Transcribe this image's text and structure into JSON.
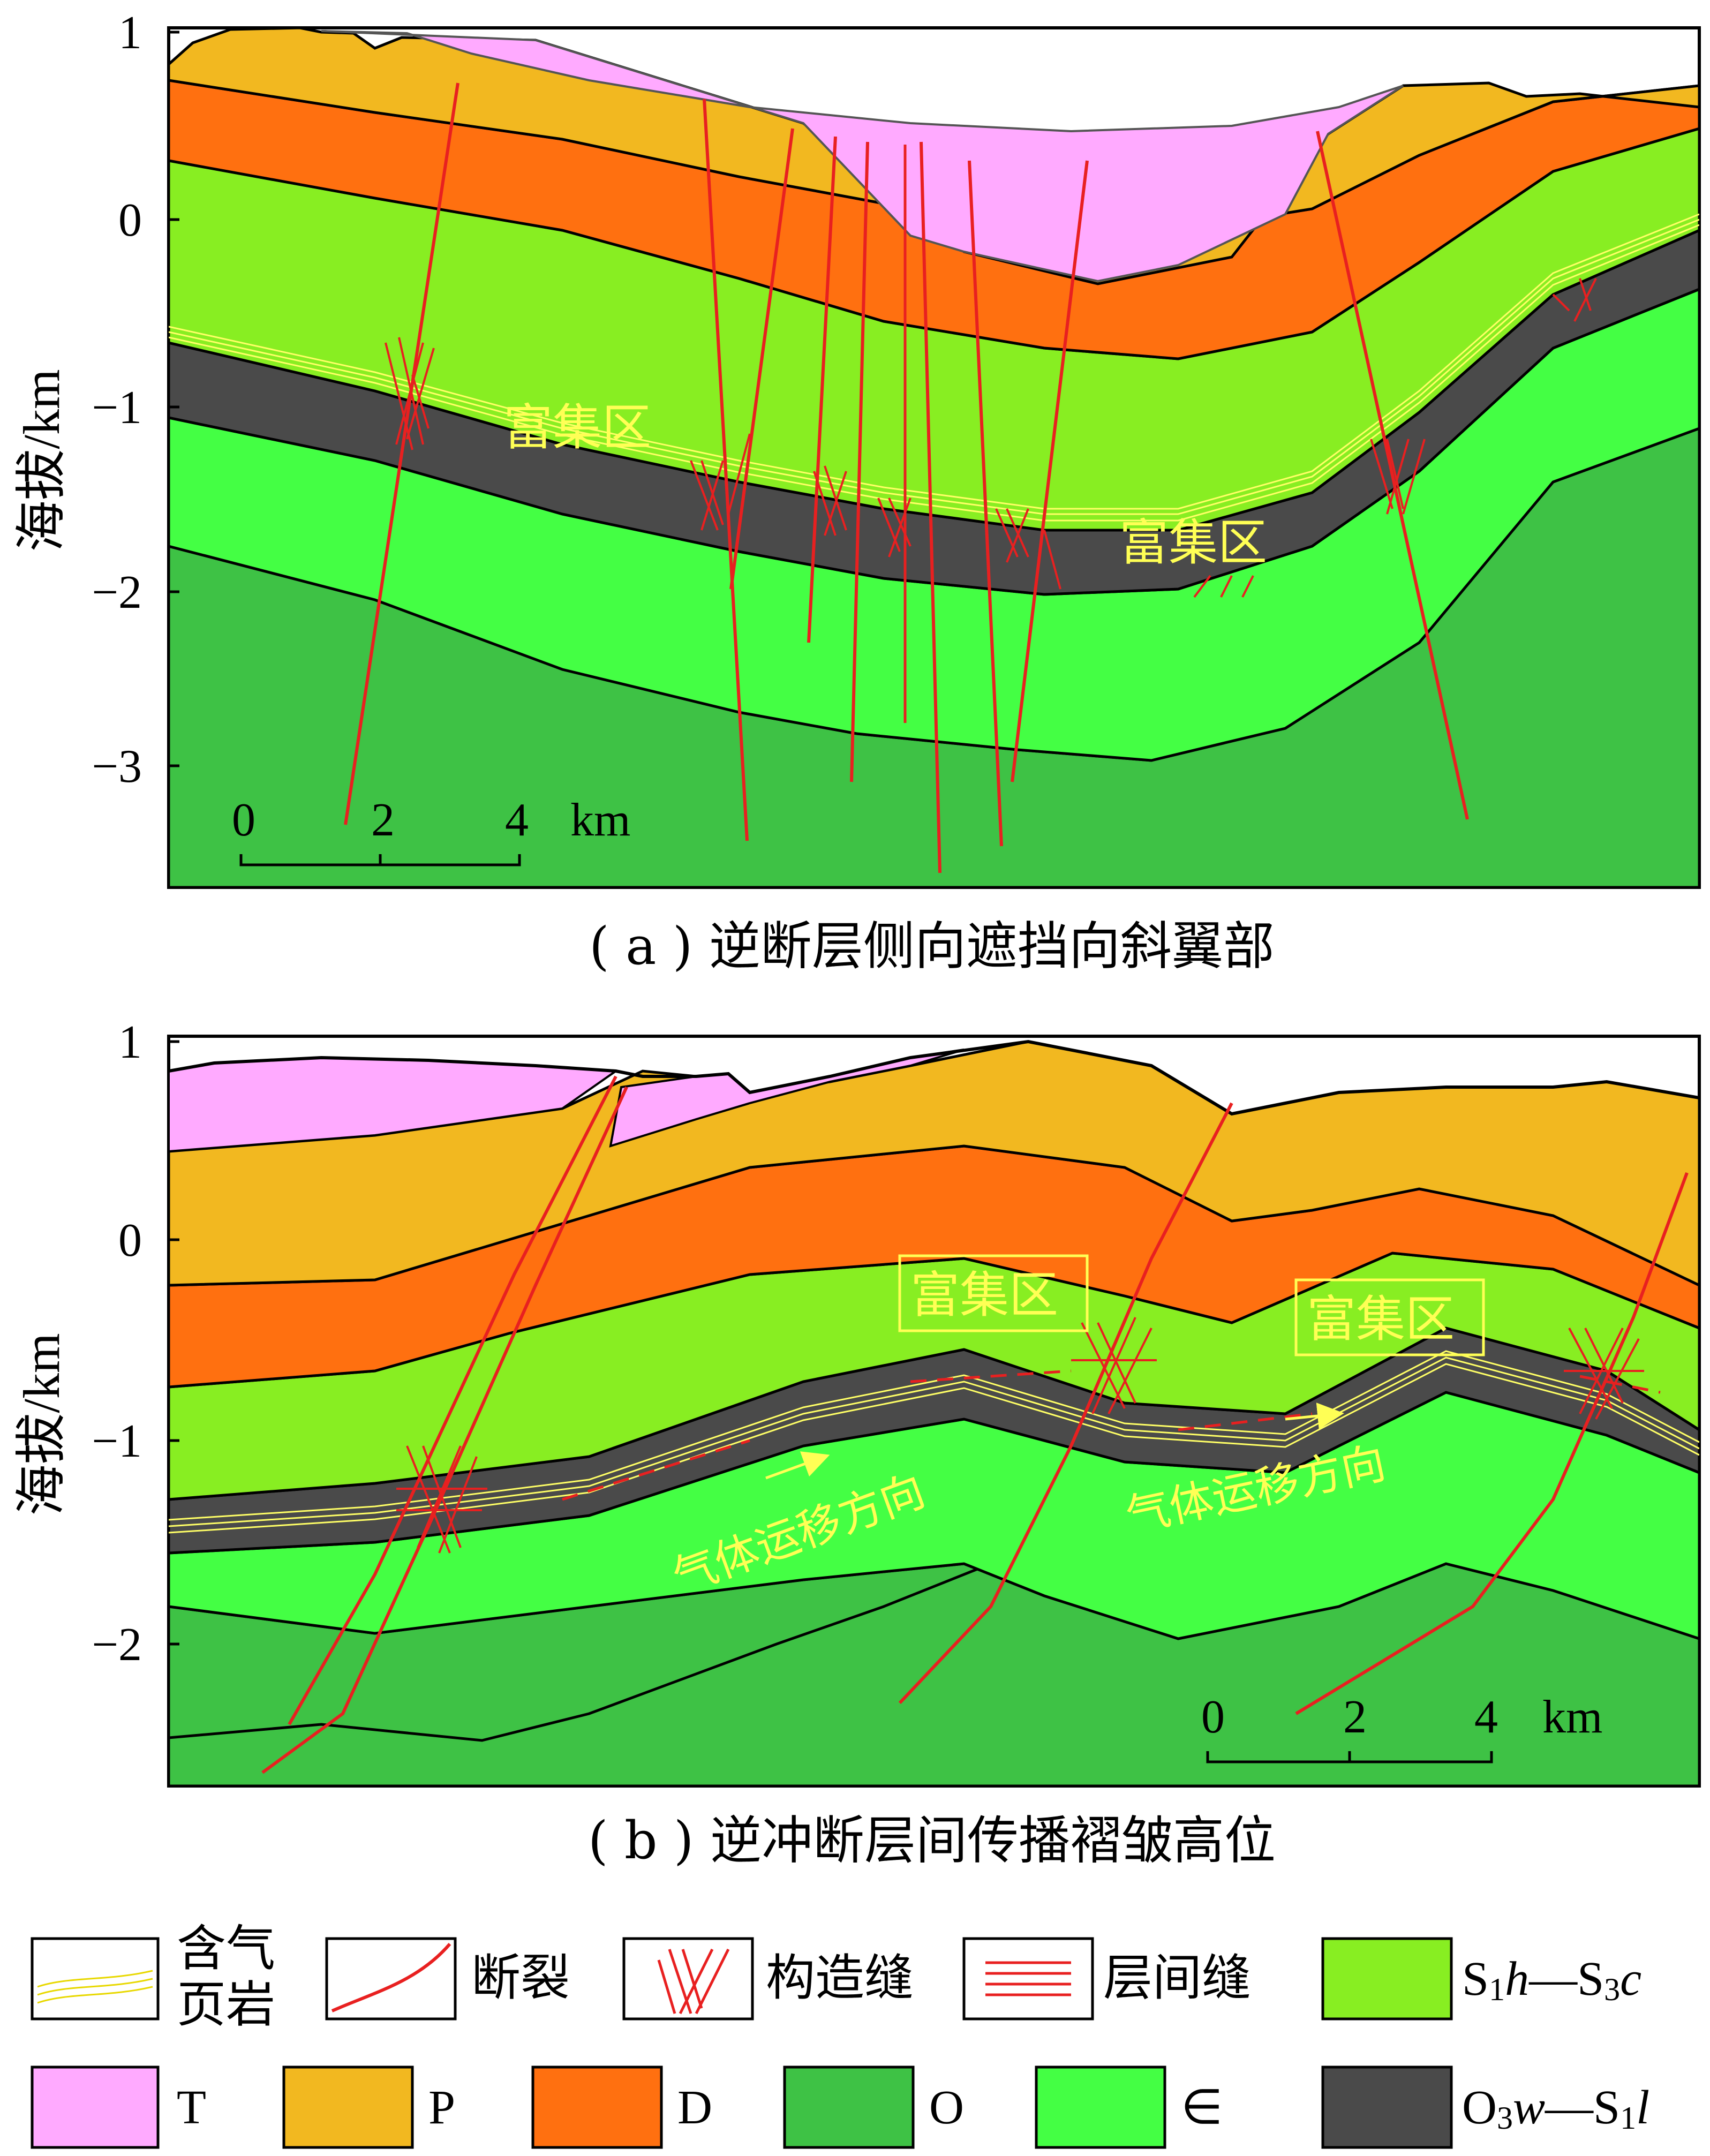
{
  "panel_a": {
    "ylabel": "海拔/km",
    "yticks": [
      "1",
      "0",
      "−1",
      "−2",
      "−3"
    ],
    "scalebar": {
      "ticks": [
        "0",
        "2",
        "4"
      ],
      "unit": "km"
    },
    "zones": [
      "富集区",
      "富集区"
    ],
    "caption": "( a ) 逆断层侧向遮挡向斜翼部"
  },
  "panel_b": {
    "ylabel": "海拔/km",
    "yticks": [
      "1",
      "0",
      "−1",
      "−2"
    ],
    "scalebar": {
      "ticks": [
        "0",
        "2",
        "4"
      ],
      "unit": "km"
    },
    "zones": [
      "富集区",
      "富集区"
    ],
    "migration": [
      "气体运移方向",
      "气体运移方向"
    ],
    "caption": "( b ) 逆冲断层间传播褶皱高位"
  },
  "legend": {
    "gas_shale": [
      "含气",
      "页岩"
    ],
    "fault": "断裂",
    "structural_fracture": "构造缝",
    "bedding_fracture": "层间缝",
    "S1h_S3c": {
      "main1": "S",
      "sub1": "1",
      "it1": "h",
      "dash": "—",
      "main2": "S",
      "sub2": "3",
      "it2": "c"
    },
    "T": "T",
    "P": "P",
    "D": "D",
    "O": "O",
    "Cam": "∈",
    "O3w_S1l": {
      "main1": "O",
      "sub1": "3",
      "it1": "w",
      "dash": "—",
      "main2": "S",
      "sub2": "1",
      "it2": "l"
    }
  },
  "colors": {
    "T": "#ffaaff",
    "P": "#f2b820",
    "D": "#ff7010",
    "S": "#88ee22",
    "O3S1": "#4a4a4a",
    "Cam": "#44ff44",
    "O": "#3ec245",
    "fault": "#e82020",
    "gas": "#ffff66"
  }
}
